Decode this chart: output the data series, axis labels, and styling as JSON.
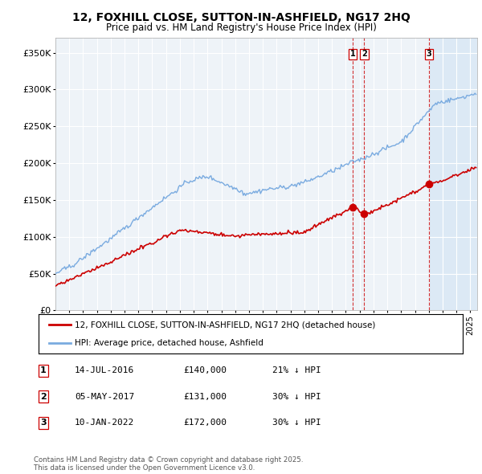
{
  "title": "12, FOXHILL CLOSE, SUTTON-IN-ASHFIELD, NG17 2HQ",
  "subtitle": "Price paid vs. HM Land Registry's House Price Index (HPI)",
  "ylabel_ticks": [
    "£0",
    "£50K",
    "£100K",
    "£150K",
    "£200K",
    "£250K",
    "£300K",
    "£350K"
  ],
  "ylim": [
    0,
    370000
  ],
  "yticks": [
    0,
    50000,
    100000,
    150000,
    200000,
    250000,
    300000,
    350000
  ],
  "legend_line1": "12, FOXHILL CLOSE, SUTTON-IN-ASHFIELD, NG17 2HQ (detached house)",
  "legend_line2": "HPI: Average price, detached house, Ashfield",
  "sale_color": "#cc0000",
  "hpi_color": "#7aabe0",
  "vline_color": "#cc0000",
  "highlight_bg": "#ddeeff",
  "transactions": [
    {
      "label": "1",
      "date": "14-JUL-2016",
      "price": 140000,
      "pct": "21%",
      "dir": "↓"
    },
    {
      "label": "2",
      "date": "05-MAY-2017",
      "price": 131000,
      "pct": "30%",
      "dir": "↓"
    },
    {
      "label": "3",
      "date": "10-JAN-2022",
      "price": 172000,
      "pct": "30%",
      "dir": "↓"
    }
  ],
  "footer": "Contains HM Land Registry data © Crown copyright and database right 2025.\nThis data is licensed under the Open Government Licence v3.0.",
  "background_color": "#ffffff",
  "plot_bg_color": "#eef3f8"
}
